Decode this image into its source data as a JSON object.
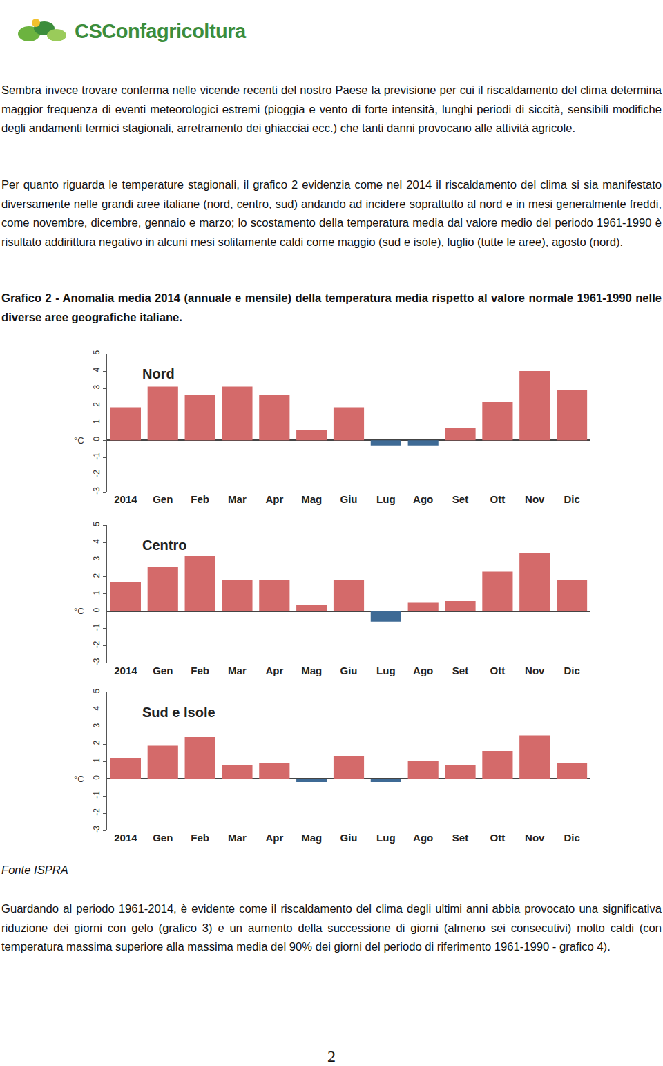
{
  "header": {
    "logo": "CSConfagricoltura"
  },
  "paragraphs": [
    "Sembra invece trovare conferma nelle vicende recenti del nostro Paese la previsione per cui il riscaldamento del clima determina maggior frequenza di eventi meteorologici estremi (pioggia e vento di forte intensità, lunghi periodi di siccità, sensibili modifiche degli andamenti termici stagionali, arretramento dei ghiacciai ecc.) che tanti danni provocano alle attività agricole.",
    "Per quanto riguarda le temperature stagionali, il grafico 2 evidenzia come nel 2014 il riscaldamento del clima si sia manifestato diversamente nelle grandi aree italiane (nord, centro, sud) andando ad incidere soprattutto al nord e in mesi generalmente freddi, come novembre, dicembre, gennaio e marzo; lo scostamento della temperatura media dal valore medio del periodo 1961-1990 è risultato addirittura negativo in alcuni mesi solitamente caldi come maggio (sud e isole), luglio (tutte le aree), agosto (nord)."
  ],
  "figure": {
    "caption": "Grafico 2 - Anomalia media 2014 (annuale e mensile) della temperatura media rispetto al valore normale 1961-1990 nelle diverse aree geografiche italiane.",
    "source": "Fonte ISPRA"
  },
  "chart_data": [
    {
      "type": "bar",
      "title": "Nord",
      "ylabel": "°C",
      "categories": [
        "2014",
        "Gen",
        "Feb",
        "Mar",
        "Apr",
        "Mag",
        "Giu",
        "Lug",
        "Ago",
        "Set",
        "Ott",
        "Nov",
        "Dic"
      ],
      "values": [
        1.9,
        3.1,
        2.6,
        3.1,
        2.6,
        0.6,
        1.9,
        -0.3,
        -0.3,
        0.7,
        2.2,
        4.0,
        2.9
      ],
      "colors": [
        "#d46a6a",
        "#d46a6a",
        "#d46a6a",
        "#d46a6a",
        "#d46a6a",
        "#d46a6a",
        "#d46a6a",
        "#3e6a95",
        "#3e6a95",
        "#d46a6a",
        "#d46a6a",
        "#d46a6a",
        "#d46a6a"
      ],
      "ylim": [
        -3,
        5
      ],
      "yticks": [
        -3,
        -2,
        -1,
        0,
        1,
        2,
        3,
        4,
        5
      ],
      "grid": false
    },
    {
      "type": "bar",
      "title": "Centro",
      "ylabel": "°C",
      "categories": [
        "2014",
        "Gen",
        "Feb",
        "Mar",
        "Apr",
        "Mag",
        "Giu",
        "Lug",
        "Ago",
        "Set",
        "Ott",
        "Nov",
        "Dic"
      ],
      "values": [
        1.7,
        2.6,
        3.2,
        1.8,
        1.8,
        0.4,
        1.8,
        -0.6,
        0.5,
        0.6,
        2.3,
        3.4,
        1.8
      ],
      "colors": [
        "#d46a6a",
        "#d46a6a",
        "#d46a6a",
        "#d46a6a",
        "#d46a6a",
        "#d46a6a",
        "#d46a6a",
        "#3e6a95",
        "#d46a6a",
        "#d46a6a",
        "#d46a6a",
        "#d46a6a",
        "#d46a6a"
      ],
      "ylim": [
        -3,
        5
      ],
      "yticks": [
        -3,
        -2,
        -1,
        0,
        1,
        2,
        3,
        4,
        5
      ],
      "grid": false
    },
    {
      "type": "bar",
      "title": "Sud e Isole",
      "ylabel": "°C",
      "categories": [
        "2014",
        "Gen",
        "Feb",
        "Mar",
        "Apr",
        "Mag",
        "Giu",
        "Lug",
        "Ago",
        "Set",
        "Ott",
        "Nov",
        "Dic"
      ],
      "values": [
        1.2,
        1.9,
        2.4,
        0.8,
        0.9,
        -0.2,
        1.3,
        -0.2,
        1.0,
        0.8,
        1.6,
        2.5,
        0.9
      ],
      "colors": [
        "#d46a6a",
        "#d46a6a",
        "#d46a6a",
        "#d46a6a",
        "#d46a6a",
        "#3e6a95",
        "#d46a6a",
        "#3e6a95",
        "#d46a6a",
        "#d46a6a",
        "#d46a6a",
        "#d46a6a",
        "#d46a6a"
      ],
      "ylim": [
        -3,
        5
      ],
      "yticks": [
        -3,
        -2,
        -1,
        0,
        1,
        2,
        3,
        4,
        5
      ],
      "grid": false
    }
  ],
  "closing_paragraph": "Guardando al periodo 1961-2014, è evidente come il riscaldamento del clima degli ultimi anni abbia provocato una significativa riduzione dei giorni con gelo (grafico 3) e un aumento della successione di giorni (almeno sei consecutivi) molto caldi (con temperatura massima superiore alla massima media del 90% dei giorni del periodo di riferimento 1961-1990 - grafico 4).",
  "page_number": "2"
}
